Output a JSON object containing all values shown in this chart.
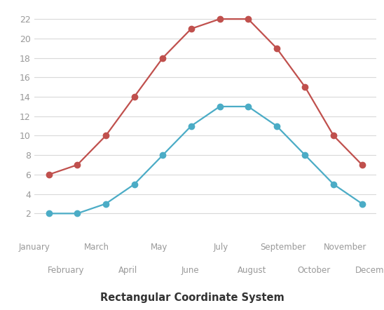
{
  "months": [
    "January",
    "February",
    "March",
    "April",
    "May",
    "June",
    "July",
    "August",
    "September",
    "October",
    "November",
    "December"
  ],
  "red_series": [
    6,
    7,
    10,
    14,
    18,
    21,
    22,
    22,
    19,
    15,
    10,
    7
  ],
  "teal_series": [
    2,
    2,
    3,
    5,
    8,
    11,
    13,
    13,
    11,
    8,
    5,
    3
  ],
  "red_color": "#c0504d",
  "teal_color": "#4bacc6",
  "background_color": "#ffffff",
  "grid_color": "#d9d9d9",
  "title": "Rectangular Coordinate System",
  "title_fontsize": 10.5,
  "ylim": [
    1,
    23
  ],
  "yticks": [
    2,
    4,
    6,
    8,
    10,
    12,
    14,
    16,
    18,
    20,
    22
  ],
  "marker_size": 6,
  "line_width": 1.6,
  "label_fontsize": 8.5,
  "label_color": "#999999"
}
